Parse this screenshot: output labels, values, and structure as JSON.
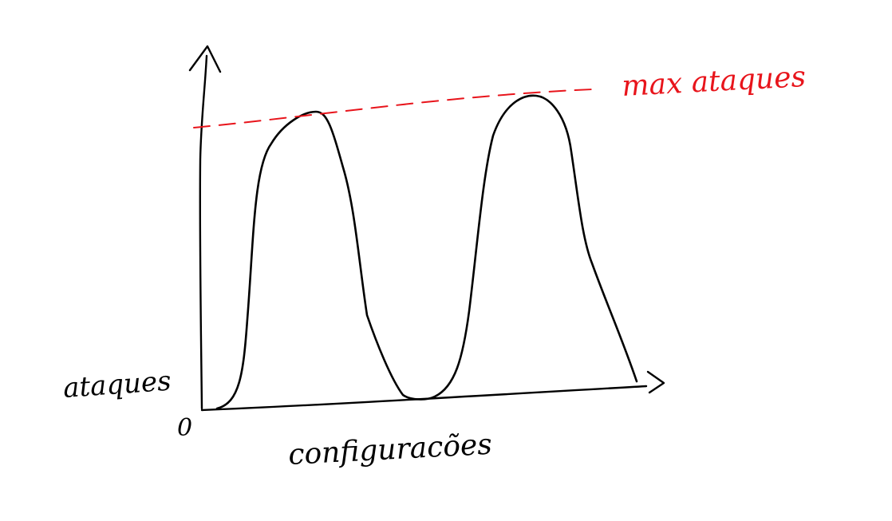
{
  "chart_data": {
    "type": "line",
    "title": "",
    "xlabel": "configuracões",
    "ylabel": "ataques",
    "origin_label": "0",
    "reference_line": {
      "label": "max ataques",
      "color": "#e8141b",
      "style": "dashed"
    },
    "series": [
      {
        "values": [
          0,
          0.05,
          0.55,
          0.97,
          0.8,
          0.25,
          0.0,
          0.04,
          0.6,
          1.0,
          0.55,
          0.08
        ]
      }
    ],
    "grid": false,
    "legend": "none"
  },
  "colors": {
    "ink": "#000000",
    "annotation": "#e8141b"
  }
}
